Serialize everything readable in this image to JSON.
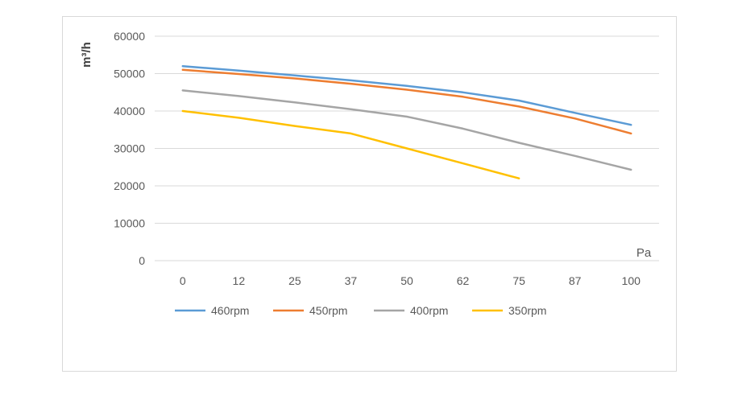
{
  "chart_data": {
    "type": "line",
    "title": "",
    "ylabel": "m³/h",
    "xlabel": "Pa",
    "categories": [
      "0",
      "12",
      "25",
      "37",
      "50",
      "62",
      "75",
      "87",
      "100"
    ],
    "ylim": [
      0,
      60000
    ],
    "yticks": [
      0,
      10000,
      20000,
      30000,
      40000,
      50000,
      60000
    ],
    "grid": true,
    "legend_position": "bottom",
    "series": [
      {
        "name": "460rpm",
        "color": "#5b9bd5",
        "values": [
          52000,
          50800,
          49500,
          48200,
          46700,
          45000,
          42800,
          39500,
          36300
        ]
      },
      {
        "name": "450rpm",
        "color": "#ed7d31",
        "values": [
          51000,
          49900,
          48700,
          47300,
          45700,
          43800,
          41200,
          38000,
          34000
        ]
      },
      {
        "name": "400rpm",
        "color": "#a5a5a5",
        "values": [
          45500,
          44000,
          42300,
          40500,
          38500,
          35300,
          31500,
          28000,
          24300
        ]
      },
      {
        "name": "350rpm",
        "color": "#ffc000",
        "values": [
          40000,
          38200,
          36000,
          34000,
          30000,
          26000,
          22000,
          null,
          null
        ]
      }
    ]
  }
}
